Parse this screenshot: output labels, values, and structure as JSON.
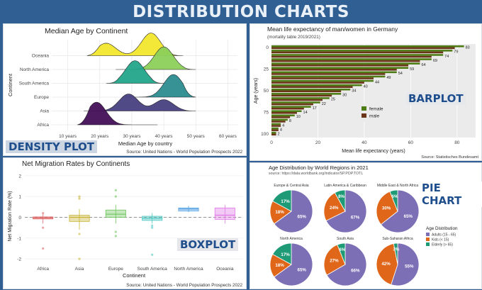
{
  "header": {
    "title": "DISTRIBUTION CHARTS"
  },
  "labels": {
    "density": "DENSITY PLOT",
    "barplot": "BARPLOT",
    "boxplot": "BOXPLOT",
    "pie": "PIE CHART"
  },
  "colors": {
    "background": "#2f5f93",
    "header_text": "#e9f0f8",
    "overlay_text": "#1f4e8c",
    "female": "#4d7c14",
    "male": "#6b3519",
    "adults": "#7c6fb5",
    "kids": "#e0661a",
    "elderly": "#1e9a76"
  },
  "chart_data": [
    {
      "type": "area",
      "subtype": "ridgeline density",
      "title": "Median Age by Continent",
      "xlabel": "Median Age by country",
      "ylabel": "Continent",
      "source": "Source: United Nations - World Population Prospects 2022",
      "x_ticks": [
        "10 years",
        "20 years",
        "30 years",
        "40 years",
        "50 years",
        "60 years"
      ],
      "xlim": [
        5,
        63
      ],
      "categories": [
        "Oceania",
        "North America",
        "South America",
        "Europe",
        "Asia",
        "Africa"
      ],
      "series": [
        {
          "name": "Oceania",
          "color": "#f2e62c",
          "peaks": [
            [
              22,
              0.55
            ],
            [
              36,
              1.0
            ]
          ],
          "range": [
            16,
            46
          ]
        },
        {
          "name": "North America",
          "color": "#8cd05a",
          "peaks": [
            [
              40,
              1.0
            ]
          ],
          "range": [
            25,
            50
          ]
        },
        {
          "name": "South America",
          "color": "#23a58a",
          "peaks": [
            [
              31,
              1.0
            ]
          ],
          "range": [
            22,
            40
          ]
        },
        {
          "name": "Europe",
          "color": "#2b8c8f",
          "peaks": [
            [
              43,
              1.0
            ]
          ],
          "range": [
            27,
            50
          ]
        },
        {
          "name": "Asia",
          "color": "#47407f",
          "peaks": [
            [
              29,
              0.75
            ],
            [
              40,
              0.5
            ]
          ],
          "range": [
            15,
            50
          ]
        },
        {
          "name": "Africa",
          "color": "#430f56",
          "peaks": [
            [
              19,
              1.0
            ]
          ],
          "range": [
            13,
            38
          ]
        }
      ]
    },
    {
      "type": "bar",
      "orientation": "horizontal",
      "title": "Mean life expectancy of man/women in Germany",
      "subtitle": "(mortality table 2019/2021)",
      "xlabel": "Mean life expectancy (years)",
      "ylabel": "Age (years)",
      "source": "Source: Statistisches Bundesamt",
      "categories": [
        0,
        5,
        10,
        15,
        20,
        25,
        30,
        35,
        40,
        45,
        50,
        55,
        60,
        65,
        70,
        75,
        80,
        85,
        90,
        95,
        100
      ],
      "y_ticks": [
        0,
        25,
        50,
        75,
        100
      ],
      "x_ticks": [
        0,
        20,
        40,
        60,
        80
      ],
      "xlim": [
        0,
        88
      ],
      "legend": [
        "female",
        "male"
      ],
      "legend_position": "inside-bottom-right",
      "series": [
        {
          "name": "female",
          "values": [
            83,
            78,
            74,
            69,
            64,
            59,
            54,
            49,
            44,
            39,
            34,
            30,
            25,
            21,
            17,
            13,
            10,
            7,
            4,
            3,
            2
          ]
        },
        {
          "name": "male",
          "values": [
            79,
            74,
            69,
            64,
            59,
            54,
            49,
            44,
            40,
            35,
            30,
            26,
            22,
            18,
            14,
            11,
            8,
            6,
            4,
            3,
            2
          ]
        },
        {
          "name": "labels",
          "values": [
            83,
            79,
            74,
            69,
            64,
            59,
            54,
            49,
            44,
            40,
            34,
            30,
            25,
            22,
            17,
            14,
            10,
            8,
            4,
            4,
            2
          ]
        }
      ]
    },
    {
      "type": "box",
      "title": "Net Migration Rates by Continents",
      "xlabel": "Continent",
      "ylabel": "Net Migration Rate (%)",
      "source": "Source: United Nations - World Population Prospects 2022",
      "categories": [
        "Africa",
        "Asia",
        "Europe",
        "South America",
        "North America",
        "Oceania"
      ],
      "y_ticks": [
        2,
        1,
        0,
        -1,
        -2
      ],
      "ylim": [
        -2.2,
        2.3
      ],
      "series": [
        {
          "name": "Africa",
          "color": "#e06a6a",
          "q1": -0.08,
          "median": -0.03,
          "q3": 0.02,
          "whisker_low": -0.3,
          "whisker_high": 0.15,
          "outliers": [
            -1.5,
            -0.5,
            0.2
          ]
        },
        {
          "name": "Asia",
          "color": "#c9b436",
          "q1": -0.2,
          "median": 0.0,
          "q3": 0.1,
          "whisker_low": -0.6,
          "whisker_high": 0.4,
          "outliers": [
            -2.0,
            -0.8,
            0.9,
            1.0
          ]
        },
        {
          "name": "Europe",
          "color": "#6ec45d",
          "q1": 0.0,
          "median": 0.15,
          "q3": 0.35,
          "whisker_low": -0.3,
          "whisker_high": 0.6,
          "outliers": [
            -0.9,
            -0.7,
            1.0,
            1.3
          ]
        },
        {
          "name": "South America",
          "color": "#4ec9c2",
          "q1": -0.15,
          "median": -0.05,
          "q3": 0.05,
          "whisker_low": -0.3,
          "whisker_high": 0.2,
          "outliers": [
            -1.8,
            -0.4,
            -0.5
          ]
        },
        {
          "name": "North America",
          "color": "#5aa4e6",
          "q1": 0.3,
          "median": 0.4,
          "q3": 0.45,
          "whisker_low": 0.25,
          "whisker_high": 0.55,
          "outliers": []
        },
        {
          "name": "Oceania",
          "color": "#e07ae6",
          "q1": -0.1,
          "median": 0.1,
          "q3": 0.45,
          "whisker_low": -0.3,
          "whisker_high": 0.6,
          "outliers": []
        }
      ]
    },
    {
      "type": "pie",
      "title": "Age Distribution by World Regions in 2021",
      "subtitle": "source: https://data.worldbank.org/indicator/SP.POP.TOTL",
      "legend_title": "Age Distribution",
      "legend": [
        "Adults (15 - 65)",
        "Kids (< 15)",
        "Elderly (> 65)"
      ],
      "legend_position": "right",
      "charts": [
        {
          "name": "Europe & Central Asia",
          "values": [
            65,
            18,
            17
          ],
          "labels": [
            "65%",
            "18%",
            "17%"
          ]
        },
        {
          "name": "Latin America & Caribbean",
          "values": [
            67,
            24,
            8
          ],
          "labels": [
            "67%",
            "24%",
            "8%"
          ]
        },
        {
          "name": "Middle East & North Africa",
          "values": [
            65,
            30,
            6
          ],
          "labels": [
            "65%",
            "30%",
            "6%"
          ]
        },
        {
          "name": "North America",
          "values": [
            65,
            18,
            17
          ],
          "labels": [
            "65%",
            "18%",
            "17%"
          ]
        },
        {
          "name": "South Asia",
          "values": [
            66,
            27,
            6
          ],
          "labels": [
            "66%",
            "27%",
            "6%"
          ]
        },
        {
          "name": "Sub-Saharan Africa",
          "values": [
            55,
            42,
            3
          ],
          "labels": [
            "55%",
            "42%",
            "3%"
          ]
        }
      ]
    }
  ]
}
